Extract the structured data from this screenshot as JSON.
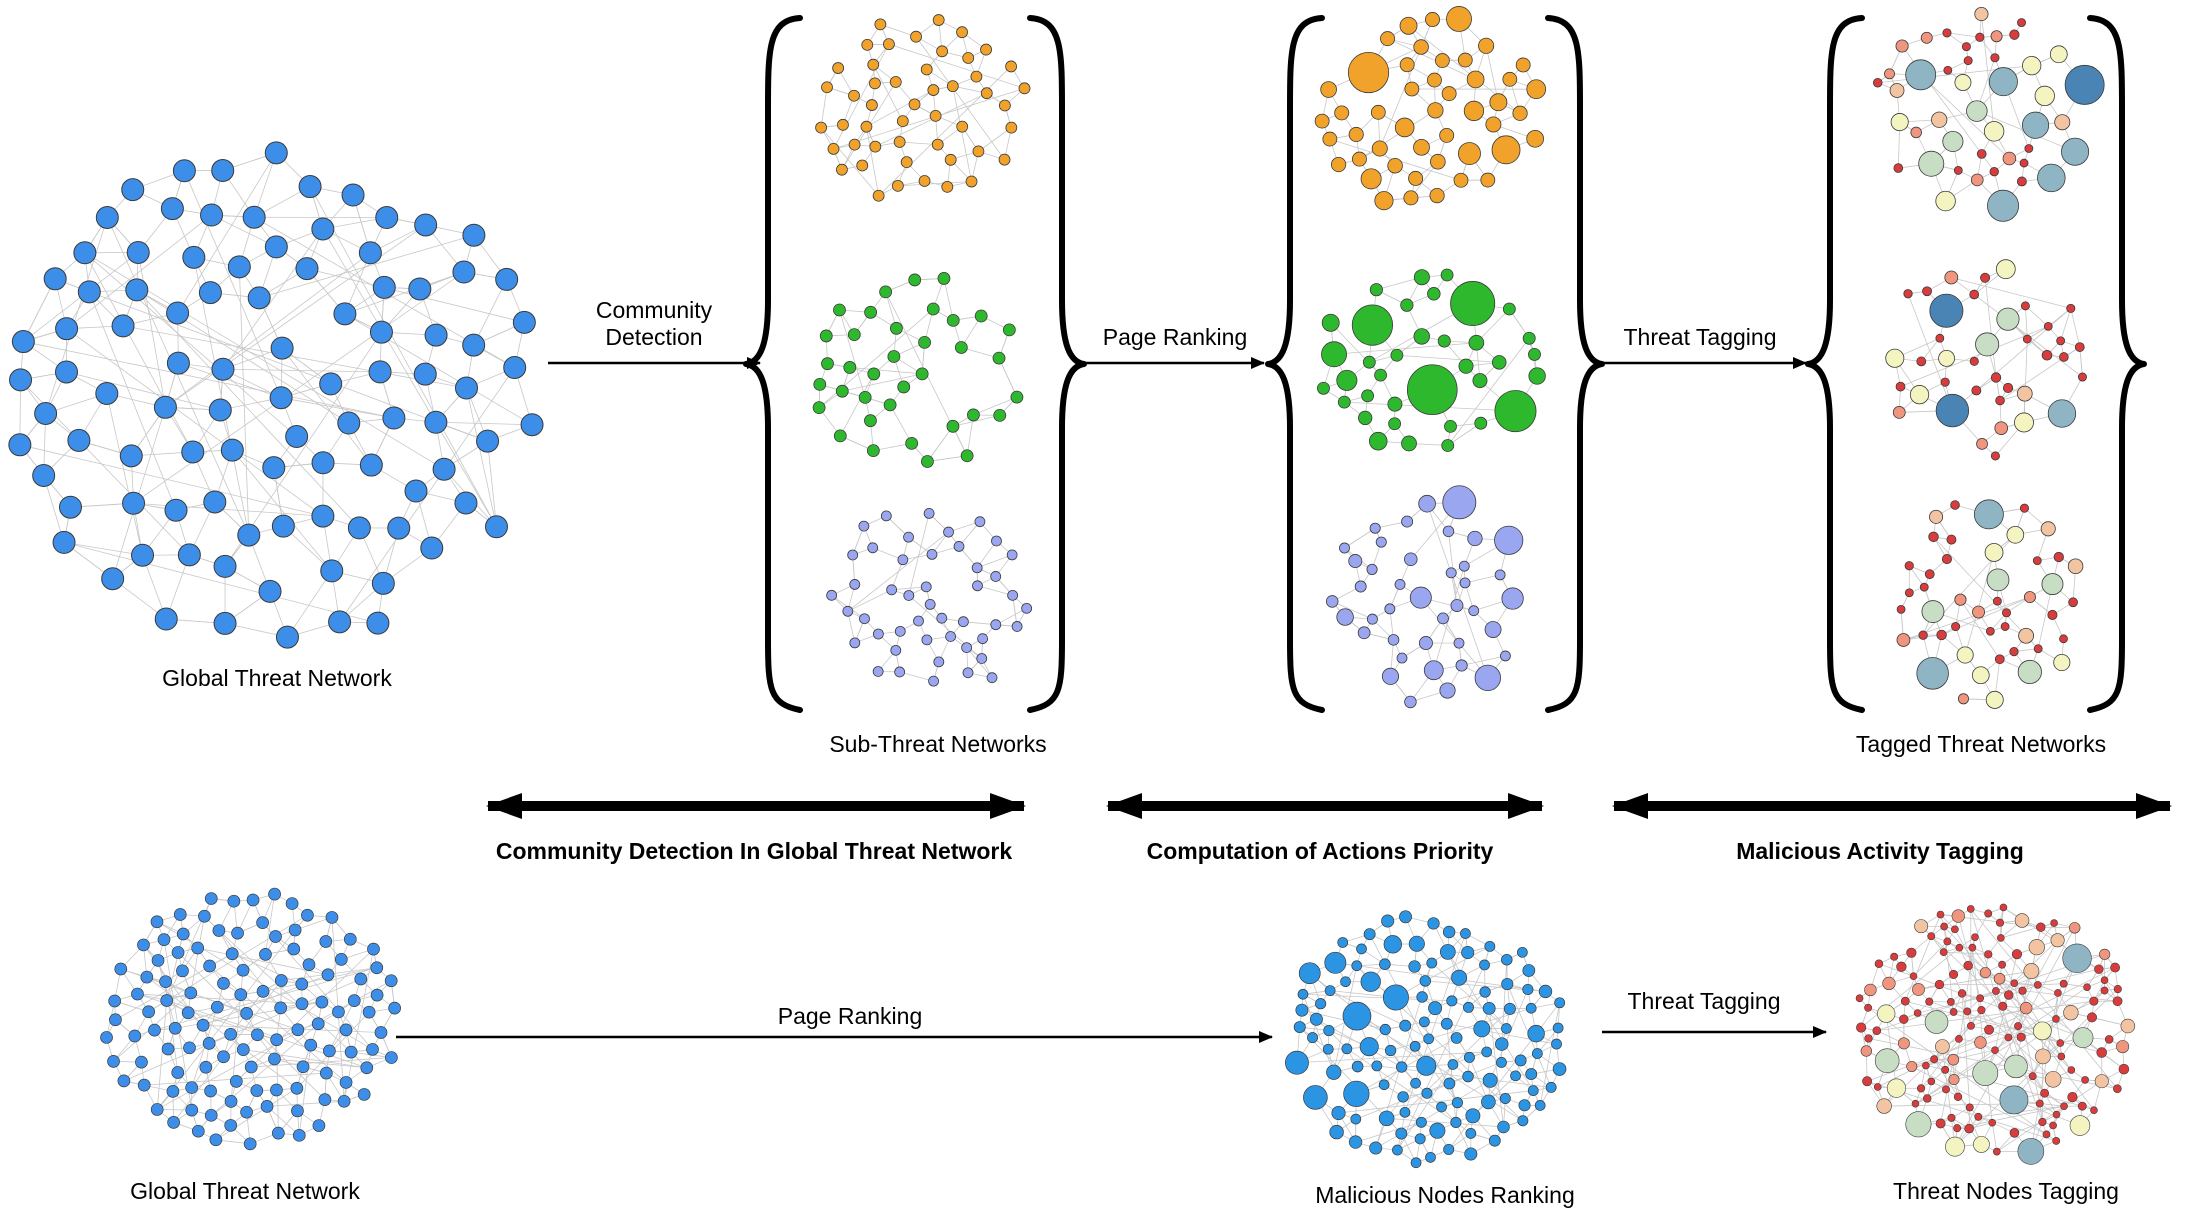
{
  "labels": {
    "global_threat_network": "Global Threat Network",
    "community_detection_line1": "Community",
    "community_detection_line2": "Detection",
    "page_ranking_top": "Page Ranking",
    "threat_tagging_top": "Threat Tagging",
    "sub_threat_networks": "Sub-Threat Networks",
    "tagged_threat_networks": "Tagged Threat Networks",
    "stage_community_detection": "Community Detection In Global Threat Network",
    "stage_computation_priority": "Computation of Actions Priority",
    "stage_malicious_tagging": "Malicious Activity Tagging",
    "global_threat_network_bottom": "Global Threat Network",
    "page_ranking_bottom": "Page Ranking",
    "threat_tagging_bottom": "Threat Tagging",
    "malicious_nodes_ranking": "Malicious Nodes Ranking",
    "threat_nodes_tagging": "Threat Nodes Tagging"
  },
  "colors": {
    "global_node": "#3d8ee8",
    "orange_node": "#f0a22b",
    "green_node": "#2eb82e",
    "lavender_node": "#9aa6ef",
    "bottom_ranked_node": "#2b95e4",
    "tag_dark_blue": "#4a84b4",
    "tag_steel_blue": "#8fb4c4",
    "tag_light_green": "#c7ddc4",
    "tag_pale_yellow": "#f4f4c0",
    "tag_peach": "#f2c4a2",
    "tag_salmon": "#f0957e",
    "tag_red": "#d83c3c",
    "edge": "#9a9a9a",
    "arrow": "#000000"
  }
}
